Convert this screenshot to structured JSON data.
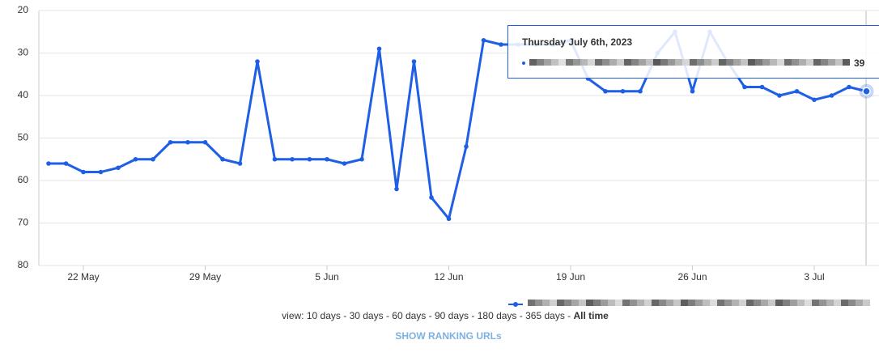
{
  "chart_data": {
    "type": "line",
    "categories": [
      null,
      null,
      "22 May",
      null,
      null,
      null,
      null,
      null,
      null,
      "29 May",
      null,
      null,
      null,
      null,
      null,
      null,
      "5 Jun",
      null,
      null,
      null,
      null,
      null,
      null,
      "12 Jun",
      null,
      null,
      null,
      null,
      null,
      null,
      "19 Jun",
      null,
      null,
      null,
      null,
      null,
      null,
      "26 Jun",
      null,
      null,
      null,
      null,
      null,
      null,
      "3 Jul",
      null,
      null,
      null
    ],
    "series": [
      {
        "color": "#1f5fe6",
        "values": [
          56,
          56,
          58,
          58,
          57,
          55,
          55,
          51,
          51,
          51,
          55,
          56,
          32,
          55,
          55,
          55,
          55,
          56,
          55,
          29,
          62,
          32,
          64,
          69,
          52,
          27,
          28,
          28,
          28,
          28,
          27,
          36,
          39,
          39,
          39,
          30,
          25,
          39,
          25,
          32,
          38,
          38,
          40,
          39,
          41,
          40,
          38,
          39
        ]
      }
    ],
    "ylim": [
      80,
      20
    ],
    "yticks": [
      20,
      30,
      40,
      50,
      60,
      70,
      80
    ],
    "grid": true,
    "tooltip": {
      "title": "Thursday July 6th, 2023",
      "index": 47
    },
    "view": {
      "label": "view:",
      "separator": "-",
      "options": [
        "10 days",
        "30 days",
        "60 days",
        "90 days",
        "180 days",
        "365 days",
        "All time"
      ]
    },
    "link": "SHOW RANKING URLs"
  }
}
